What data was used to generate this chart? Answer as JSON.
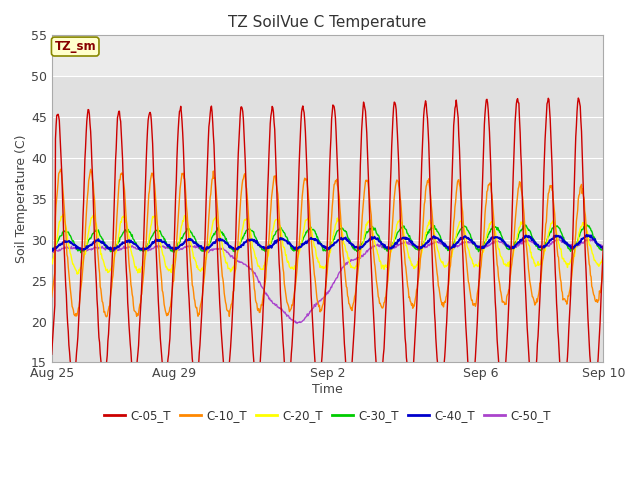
{
  "title": "TZ SoilVue C Temperature",
  "ylabel": "Soil Temperature (C)",
  "xlabel": "Time",
  "ylim": [
    15,
    55
  ],
  "legend_labels": [
    "C-05_T",
    "C-10_T",
    "C-20_T",
    "C-30_T",
    "C-40_T",
    "C-50_T"
  ],
  "line_colors": [
    "#cc0000",
    "#ff8800",
    "#ffff00",
    "#00cc00",
    "#0000cc",
    "#aa44cc"
  ],
  "line_widths": [
    1.0,
    1.0,
    1.0,
    1.0,
    1.5,
    1.0
  ],
  "annotation_text": "TZ_sm",
  "annotation_color": "#880000",
  "annotation_bg": "#ffffcc",
  "annotation_border": "#888800",
  "fig_bg_color": "#ffffff",
  "plot_bg_upper": "#e8e8e8",
  "plot_bg_lower": "#d8d8d8",
  "xtick_labels": [
    "Aug 25",
    "Aug 29",
    "Sep 2",
    "Sep 6",
    "Sep 10"
  ],
  "xtick_positions": [
    0,
    4,
    9,
    14,
    18
  ],
  "ytick_positions": [
    15,
    20,
    25,
    30,
    35,
    40,
    45,
    50,
    55
  ],
  "grid_color": "#ffffff",
  "title_fontsize": 11,
  "axis_fontsize": 9,
  "tick_fontsize": 9,
  "n_days": 18,
  "samples_per_day": 48
}
